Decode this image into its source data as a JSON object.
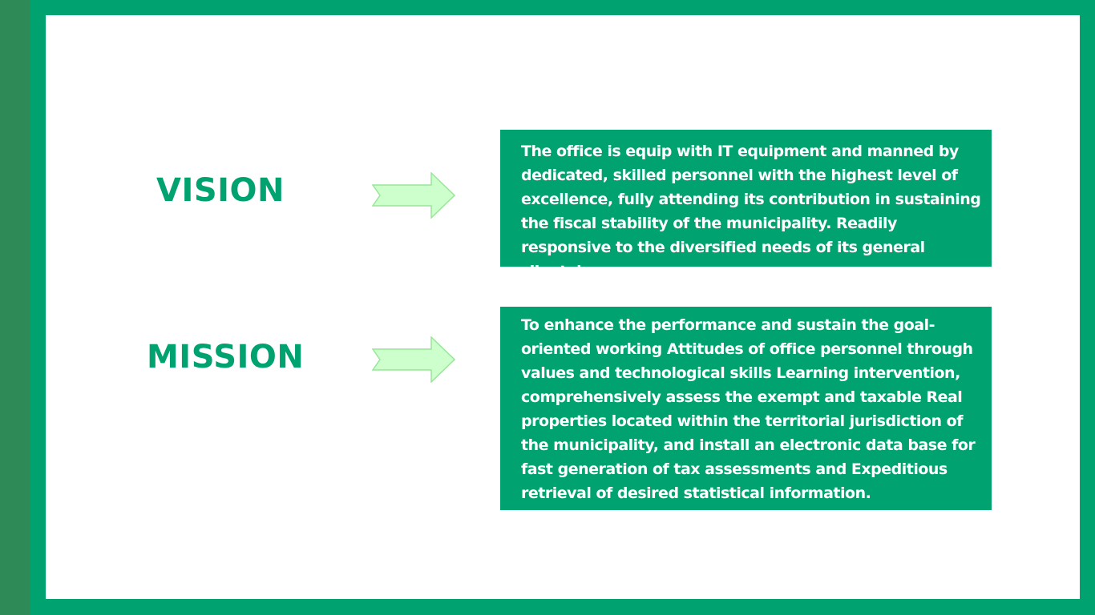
{
  "colors": {
    "accent": "#00a26f",
    "dark_bar": "#2e8b57",
    "arrow_fill": "#ccffcc",
    "arrow_stroke": "#99e699"
  },
  "vision": {
    "title": "VISION",
    "text": "The office is equip with IT equipment and manned by dedicated, skilled personnel with the highest level of excellence, fully attending its contribution in sustaining the fiscal stability of the municipality. Readily responsive to the diversified needs of its general clientele."
  },
  "mission": {
    "title": "MISSION",
    "text": "To enhance the performance and sustain the goal-oriented working Attitudes of office personnel through values and technological skills Learning intervention, comprehensively assess the exempt and taxable Real properties located within the territorial jurisdiction of the municipality, and install an electronic data base for fast generation of tax assessments and Expeditious retrieval of desired statistical information."
  },
  "icons": {
    "arrow": "right-arrow-icon"
  }
}
